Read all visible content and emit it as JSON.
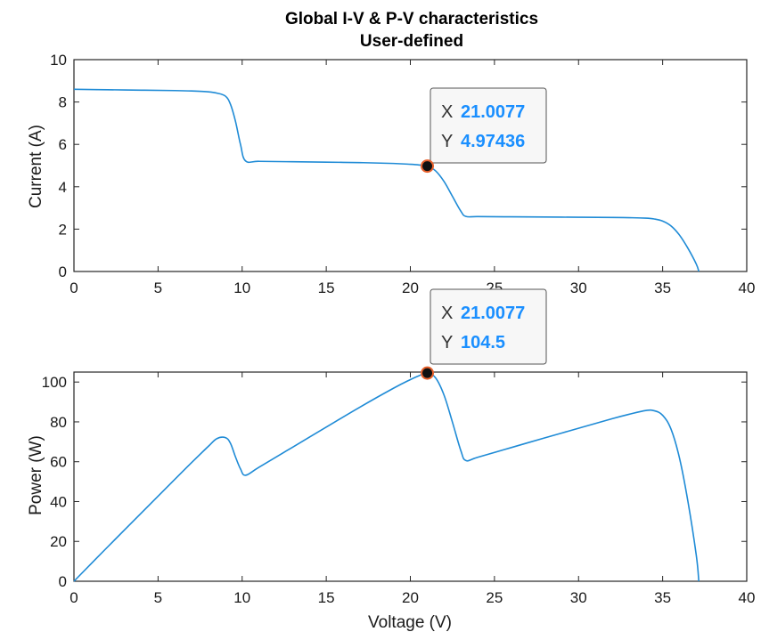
{
  "title": {
    "line1": "Global I-V & P-V characteristics",
    "line2": "User-defined"
  },
  "colors": {
    "series": "#1f8bd6",
    "axis": "#262626",
    "marker_ring": "#e8612c",
    "marker_fill": "#111111"
  },
  "chart_data": [
    {
      "type": "line",
      "title": "Global I-V & P-V characteristics / User-defined",
      "xlabel": "",
      "ylabel": "Current (A)",
      "xlim": [
        0,
        40
      ],
      "ylim": [
        0,
        10
      ],
      "xticks": [
        0,
        5,
        10,
        15,
        20,
        25,
        30,
        35,
        40
      ],
      "yticks": [
        0,
        2,
        4,
        6,
        8,
        10
      ],
      "grid": false,
      "x": [
        0,
        2,
        4,
        6,
        7,
        8,
        8.5,
        9,
        9.3,
        9.6,
        9.9,
        10.2,
        11,
        13,
        15,
        17,
        19,
        20,
        20.5,
        21.0077,
        21.5,
        22,
        22.5,
        23,
        23.3,
        24,
        26,
        28,
        30,
        32,
        33,
        34,
        34.5,
        35,
        35.5,
        36,
        36.5,
        37,
        37.15
      ],
      "values": [
        8.6,
        8.58,
        8.56,
        8.54,
        8.52,
        8.48,
        8.42,
        8.28,
        7.9,
        7.1,
        6.0,
        5.22,
        5.2,
        5.18,
        5.16,
        5.14,
        5.1,
        5.06,
        5.03,
        4.97436,
        4.75,
        4.25,
        3.55,
        2.85,
        2.6,
        2.59,
        2.58,
        2.57,
        2.56,
        2.55,
        2.54,
        2.52,
        2.48,
        2.38,
        2.15,
        1.72,
        1.1,
        0.35,
        0
      ],
      "datatip": {
        "x_label": "X",
        "x_value": "21.0077",
        "y_label": "Y",
        "y_value": "4.97436",
        "x": 21.0077,
        "y": 4.97436
      }
    },
    {
      "type": "line",
      "xlabel": "Voltage (V)",
      "ylabel": "Power (W)",
      "xlim": [
        0,
        40
      ],
      "ylim": [
        0,
        105
      ],
      "xticks": [
        0,
        5,
        10,
        15,
        20,
        25,
        30,
        35,
        40
      ],
      "yticks": [
        0,
        20,
        40,
        60,
        80,
        100
      ],
      "grid": false,
      "x": [
        0,
        2,
        4,
        6,
        7,
        8,
        8.5,
        9,
        9.3,
        9.6,
        9.9,
        10.2,
        11,
        13,
        15,
        17,
        19,
        20,
        20.5,
        21.0077,
        21.5,
        22,
        22.5,
        23,
        23.3,
        24,
        26,
        28,
        30,
        32,
        33,
        34,
        34.5,
        35,
        35.5,
        36,
        36.5,
        37,
        37.15
      ],
      "values": [
        0,
        17.2,
        34.2,
        51.2,
        59.6,
        67.8,
        71.6,
        72.1,
        69.3,
        62.5,
        56.4,
        53.2,
        57.2,
        67.3,
        77.4,
        87.4,
        96.9,
        101.2,
        103.1,
        104.5,
        102.1,
        93.5,
        79.9,
        65.6,
        60.6,
        62.2,
        67.1,
        72.0,
        76.8,
        81.6,
        83.8,
        85.7,
        85.6,
        83.3,
        76.3,
        61.9,
        40.2,
        13.0,
        0
      ],
      "datatip": {
        "x_label": "X",
        "x_value": "21.0077",
        "y_label": "Y",
        "y_value": "104.5",
        "x": 21.0077,
        "y": 104.5
      }
    }
  ]
}
